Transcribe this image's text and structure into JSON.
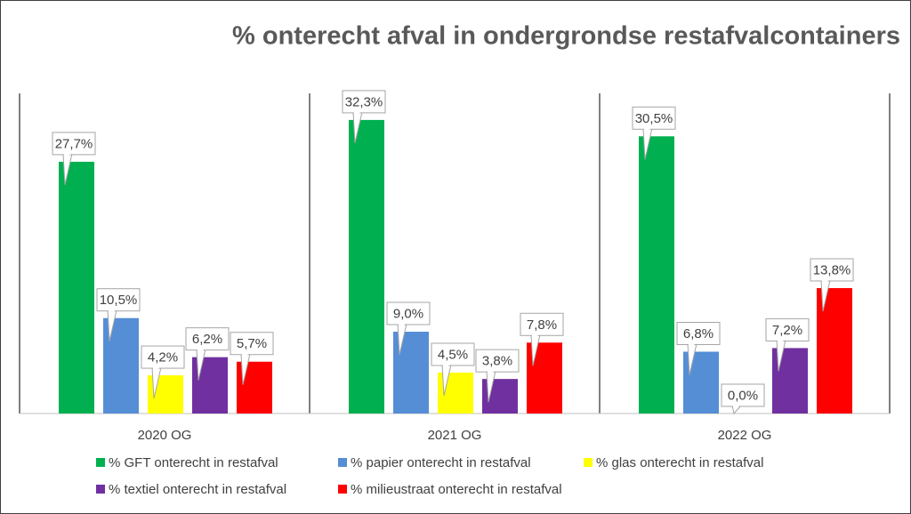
{
  "chart_data": {
    "type": "bar",
    "title": "% onterecht afval in ondergrondse restafvalcontainers",
    "categories": [
      "2020 OG",
      "2021 OG",
      "2022 OG"
    ],
    "series": [
      {
        "name": "% GFT onterecht in restafval",
        "color": "#00b050",
        "values": [
          27.7,
          32.3,
          30.5
        ],
        "value_labels": [
          "27,7%",
          "32,3%",
          "30,5%"
        ]
      },
      {
        "name": "% papier onterecht in restafval",
        "color": "#558ed5",
        "values": [
          10.5,
          9.0,
          6.8
        ],
        "value_labels": [
          "10,5%",
          "9,0%",
          "6,8%"
        ]
      },
      {
        "name": "% glas onterecht in restafval",
        "color": "#ffff00",
        "values": [
          4.2,
          4.5,
          0.0
        ],
        "value_labels": [
          "4,2%",
          "4,5%",
          "0,0%"
        ]
      },
      {
        "name": "% textiel onterecht in restafval",
        "color": "#7030a0",
        "values": [
          6.2,
          3.8,
          7.2
        ],
        "value_labels": [
          "6,2%",
          "3,8%",
          "7,2%"
        ]
      },
      {
        "name": "% milieustraat onterecht in restafval",
        "color": "#ff0000",
        "values": [
          5.7,
          7.8,
          13.8
        ],
        "value_labels": [
          "5,7%",
          "7,8%",
          "13,8%"
        ]
      }
    ]
  }
}
